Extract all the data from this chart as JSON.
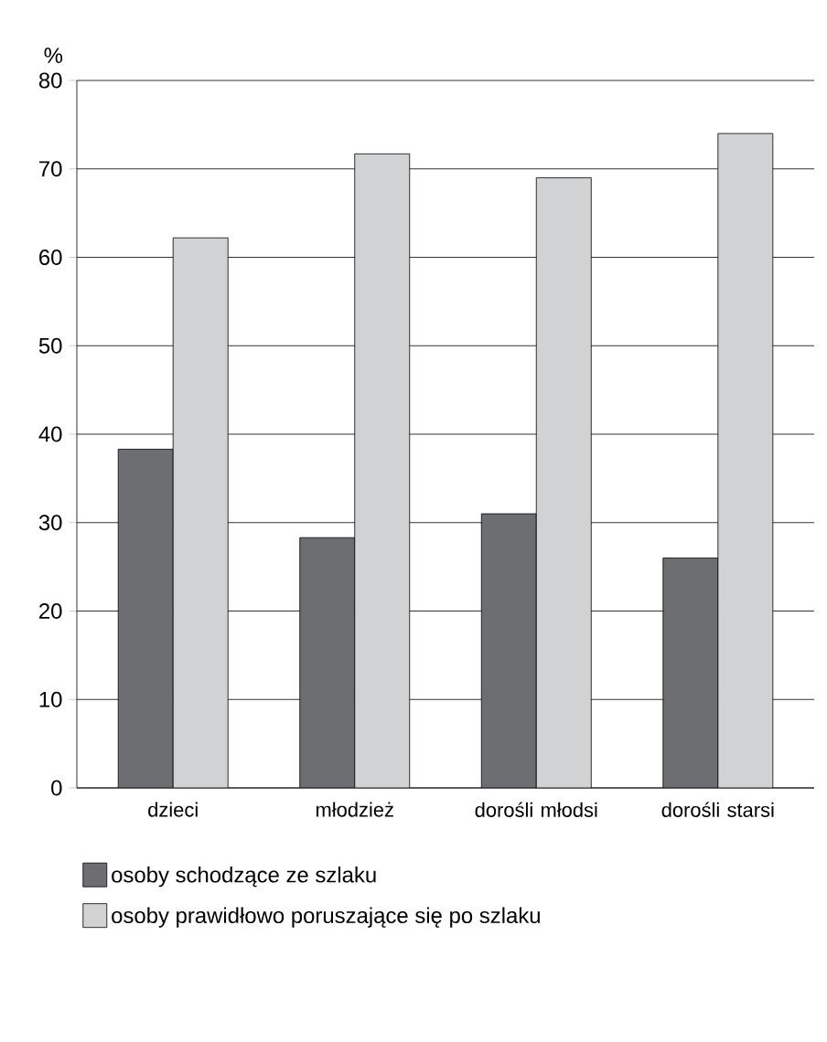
{
  "chart_data": {
    "type": "bar",
    "ylabel": "%",
    "categories": [
      "dzieci",
      "młodzież",
      "dorośli młodsi",
      "dorośli starsi"
    ],
    "series": [
      {
        "name": "osoby schodzące ze szlaku",
        "color": "#6d6e71",
        "values": [
          38.3,
          28.3,
          31.0,
          26.0
        ]
      },
      {
        "name": "osoby prawidłowo poruszające się po szlaku",
        "color": "#d1d2d4",
        "values": [
          62.2,
          71.7,
          69.0,
          74.0
        ]
      }
    ],
    "ylim": [
      0,
      80
    ],
    "yticks": [
      0,
      10,
      20,
      30,
      40,
      50,
      60,
      70,
      80
    ],
    "grid": "y",
    "legend": "bottom"
  }
}
